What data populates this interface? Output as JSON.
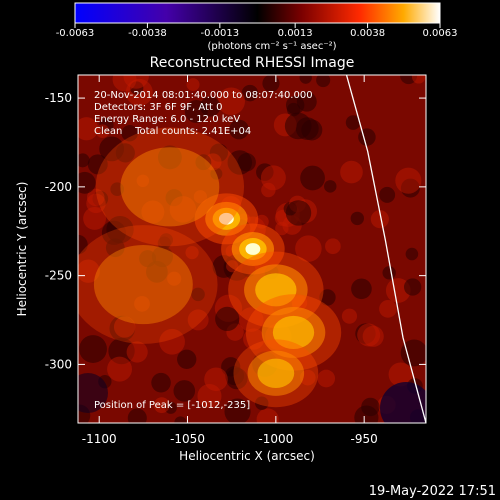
{
  "colorbar": {
    "ticks": [
      {
        "value": -0.0063,
        "label": "-0.0063"
      },
      {
        "value": -0.0038,
        "label": "-0.0038"
      },
      {
        "value": -0.0013,
        "label": "-0.0013"
      },
      {
        "value": 0.0013,
        "label": "0.0013"
      },
      {
        "value": 0.0038,
        "label": "0.0038"
      },
      {
        "value": 0.0063,
        "label": "0.0063"
      }
    ],
    "range": [
      -0.0063,
      0.0063
    ],
    "units": "(photons cm⁻² s⁻¹ asec⁻²)",
    "colors": [
      "#0000ff",
      "#4400aa",
      "#000000",
      "#7a0000",
      "#ff2a00",
      "#ffaa00",
      "#ffffff"
    ]
  },
  "title": "Reconstructed RHESSI Image",
  "annotations": {
    "time": "20-Nov-2014 08:01:40.000 to 08:07:40.000",
    "detectors": "Detectors: 3F 6F 9F, Att 0",
    "energy": "Energy Range: 6.0 - 12.0 keV",
    "clean": "Clean    Total counts: 2.41E+04",
    "peak": "Position of Peak = [-1012,-235]"
  },
  "axes": {
    "xlabel": "Heliocentric X (arcsec)",
    "ylabel": "Heliocentric Y (arcsec)",
    "xticks": [
      {
        "value": -1100,
        "label": "-1100"
      },
      {
        "value": -1050,
        "label": "-1050"
      },
      {
        "value": -1000,
        "label": "-1000"
      },
      {
        "value": -950,
        "label": "-950"
      }
    ],
    "yticks": [
      {
        "value": -150,
        "label": "-150"
      },
      {
        "value": -200,
        "label": "-200"
      },
      {
        "value": -250,
        "label": "-250"
      },
      {
        "value": -300,
        "label": "-300"
      }
    ],
    "xlim": [
      -1112,
      -915
    ],
    "ylim": [
      -333,
      -137
    ]
  },
  "sources": [
    {
      "x": -1028,
      "y": -218,
      "intensity": 1.0,
      "sigma": 6
    },
    {
      "x": -1013,
      "y": -235,
      "intensity": 1.0,
      "sigma": 6
    },
    {
      "x": -1000,
      "y": -258,
      "intensity": 0.55,
      "sigma": 9
    },
    {
      "x": -990,
      "y": -282,
      "intensity": 0.5,
      "sigma": 9
    },
    {
      "x": -1000,
      "y": -305,
      "intensity": 0.45,
      "sigma": 8
    },
    {
      "x": -1060,
      "y": -200,
      "intensity": 0.35,
      "sigma": 14
    },
    {
      "x": -1075,
      "y": -255,
      "intensity": 0.3,
      "sigma": 14
    }
  ],
  "limb": [
    {
      "x": -960,
      "y": -137
    },
    {
      "x": -948,
      "y": -180
    },
    {
      "x": -938,
      "y": -230
    },
    {
      "x": -928,
      "y": -285
    },
    {
      "x": -915,
      "y": -333
    }
  ],
  "footer": {
    "timestamp": "19-May-2022 17:51"
  }
}
